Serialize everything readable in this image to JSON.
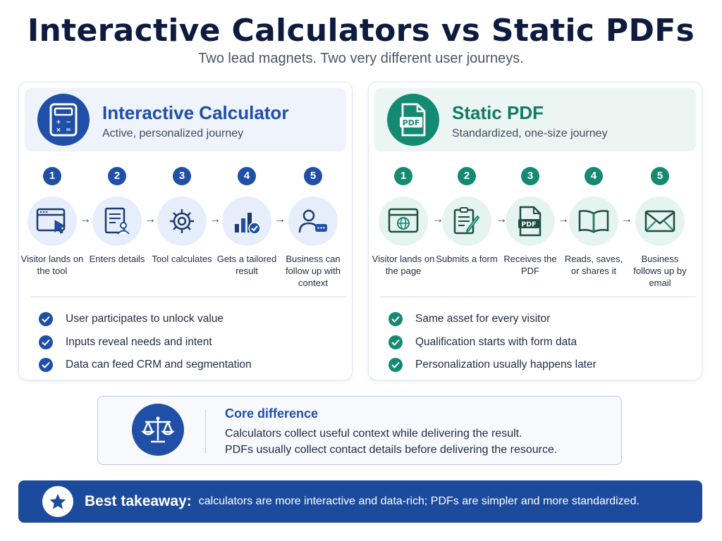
{
  "title": "Interactive Calculators vs Static PDFs",
  "subtitle": "Two lead magnets. Two very different user journeys.",
  "calculator": {
    "title": "Interactive Calculator",
    "subtitle": "Active, personalized journey",
    "icon": "calculator-icon",
    "color": "#1f4fa6",
    "steps": [
      {
        "num": "1",
        "icon": "browser-cursor-icon",
        "label": "Visitor lands on the tool"
      },
      {
        "num": "2",
        "icon": "form-user-icon",
        "label": "Enters details"
      },
      {
        "num": "3",
        "icon": "gear-icon",
        "label": "Tool calculates"
      },
      {
        "num": "4",
        "icon": "chart-check-icon",
        "label": "Gets a tailored result"
      },
      {
        "num": "5",
        "icon": "user-chat-icon",
        "label": "Business can follow up with context"
      }
    ],
    "checks": [
      "User participates to unlock value",
      "Inputs reveal needs and intent",
      "Data can feed CRM and segmentation"
    ]
  },
  "pdf": {
    "title": "Static PDF",
    "subtitle": "Standardized, one-size journey",
    "icon": "pdf-file-icon",
    "badge_text": "PDF",
    "color": "#158a72",
    "steps": [
      {
        "num": "1",
        "icon": "browser-globe-icon",
        "label": "Visitor lands on the page"
      },
      {
        "num": "2",
        "icon": "form-pencil-icon",
        "label": "Submits a form"
      },
      {
        "num": "3",
        "icon": "pdf-document-icon",
        "label": "Receives the PDF"
      },
      {
        "num": "4",
        "icon": "open-book-icon",
        "label": "Reads, saves, or shares it"
      },
      {
        "num": "5",
        "icon": "envelope-icon",
        "label": "Business follows up by email"
      }
    ],
    "checks": [
      "Same asset for every visitor",
      "Qualification starts with form data",
      "Personalization usually happens later"
    ]
  },
  "core": {
    "icon": "scales-icon",
    "title": "Core difference",
    "line1": "Calculators collect useful context while delivering the result.",
    "line2": "PDFs usually collect contact details before delivering the resource."
  },
  "takeaway": {
    "icon": "star-icon",
    "label": "Best takeaway:",
    "text": "calculators are more interactive and data-rich; PDFs are simpler and more standardized."
  }
}
